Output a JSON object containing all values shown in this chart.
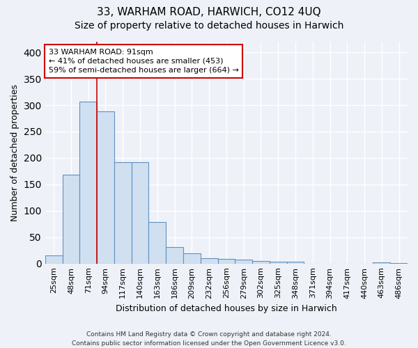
{
  "title": "33, WARHAM ROAD, HARWICH, CO12 4UQ",
  "subtitle": "Size of property relative to detached houses in Harwich",
  "xlabel": "Distribution of detached houses by size in Harwich",
  "ylabel": "Number of detached properties",
  "categories": [
    "25sqm",
    "48sqm",
    "71sqm",
    "94sqm",
    "117sqm",
    "140sqm",
    "163sqm",
    "186sqm",
    "209sqm",
    "232sqm",
    "256sqm",
    "279sqm",
    "302sqm",
    "325sqm",
    "348sqm",
    "371sqm",
    "394sqm",
    "417sqm",
    "440sqm",
    "463sqm",
    "486sqm"
  ],
  "values": [
    15,
    168,
    307,
    288,
    192,
    192,
    78,
    31,
    19,
    10,
    9,
    7,
    5,
    4,
    4,
    0,
    0,
    0,
    0,
    2,
    1
  ],
  "bar_color": "#d0e0f0",
  "bar_edge_color": "#6090c0",
  "red_line_x": 2.5,
  "annotation_line1": "33 WARHAM ROAD: 91sqm",
  "annotation_line2": "← 41% of detached houses are smaller (453)",
  "annotation_line3": "59% of semi-detached houses are larger (664) →",
  "annotation_box_color": "white",
  "annotation_box_edge": "#cc0000",
  "footer_line1": "Contains HM Land Registry data © Crown copyright and database right 2024.",
  "footer_line2": "Contains public sector information licensed under the Open Government Licence v3.0.",
  "ylim": [
    0,
    420
  ],
  "background_color": "#eef2f8",
  "grid_color": "white",
  "title_fontsize": 11,
  "subtitle_fontsize": 10,
  "ylabel_fontsize": 9,
  "xlabel_fontsize": 9,
  "tick_fontsize": 8,
  "annotation_fontsize": 8
}
